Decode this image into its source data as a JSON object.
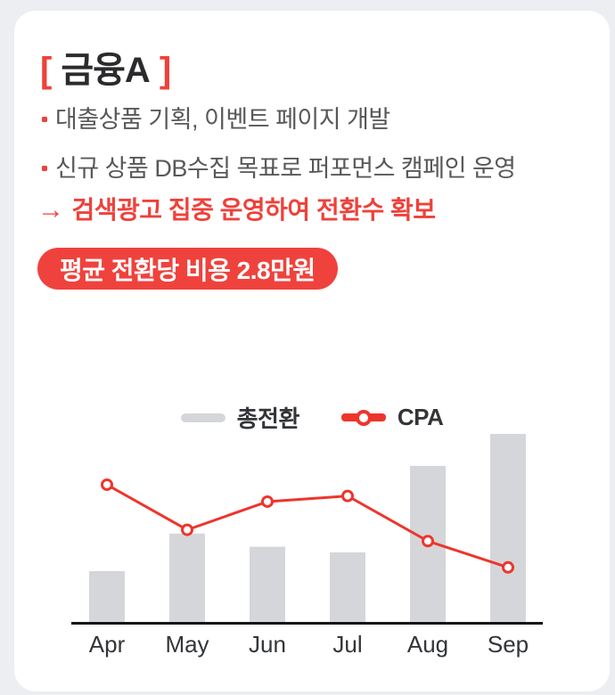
{
  "card": {
    "title": {
      "bracket_left": "[",
      "text": "금융A",
      "bracket_right": "]"
    },
    "bullets": [
      {
        "text": "대출상품 기획, 이벤트 페이지 개발"
      },
      {
        "text": "신규 상품 DB수집 목표로 퍼포먼스 캠페인 운영"
      }
    ],
    "highlight": {
      "arrow": "→",
      "text": "검색광고 집중 운영하여 전환수 확보"
    },
    "badge": {
      "text": "평균 전환당 비용 2.8만원"
    }
  },
  "colors": {
    "page_bg": "#eceef1",
    "card_bg": "#ffffff",
    "accent_red": "#ef413b",
    "chart_red": "#ee352c",
    "bar_gray": "#d4d6d9",
    "title_dark": "#2b2b2d",
    "body_text": "#58585a",
    "axis_black": "#161616",
    "axis_label": "#333538"
  },
  "chart_data": {
    "type": "bar",
    "note": "bar series with overlaid line series; no numeric y-axis shown, values are relative (max bar = 100)",
    "categories": [
      "Apr",
      "May",
      "Jun",
      "Jul",
      "Aug",
      "Sep"
    ],
    "series": [
      {
        "name": "총전환",
        "type": "bar",
        "values": [
          27,
          47,
          40,
          37,
          83,
          100
        ]
      },
      {
        "name": "CPA",
        "type": "line",
        "values": [
          73,
          49,
          64,
          67,
          43,
          29
        ]
      }
    ],
    "xlabel": "",
    "ylabel": "",
    "ylim": [
      0,
      105
    ],
    "grid": false,
    "legend_position": "top-center"
  }
}
